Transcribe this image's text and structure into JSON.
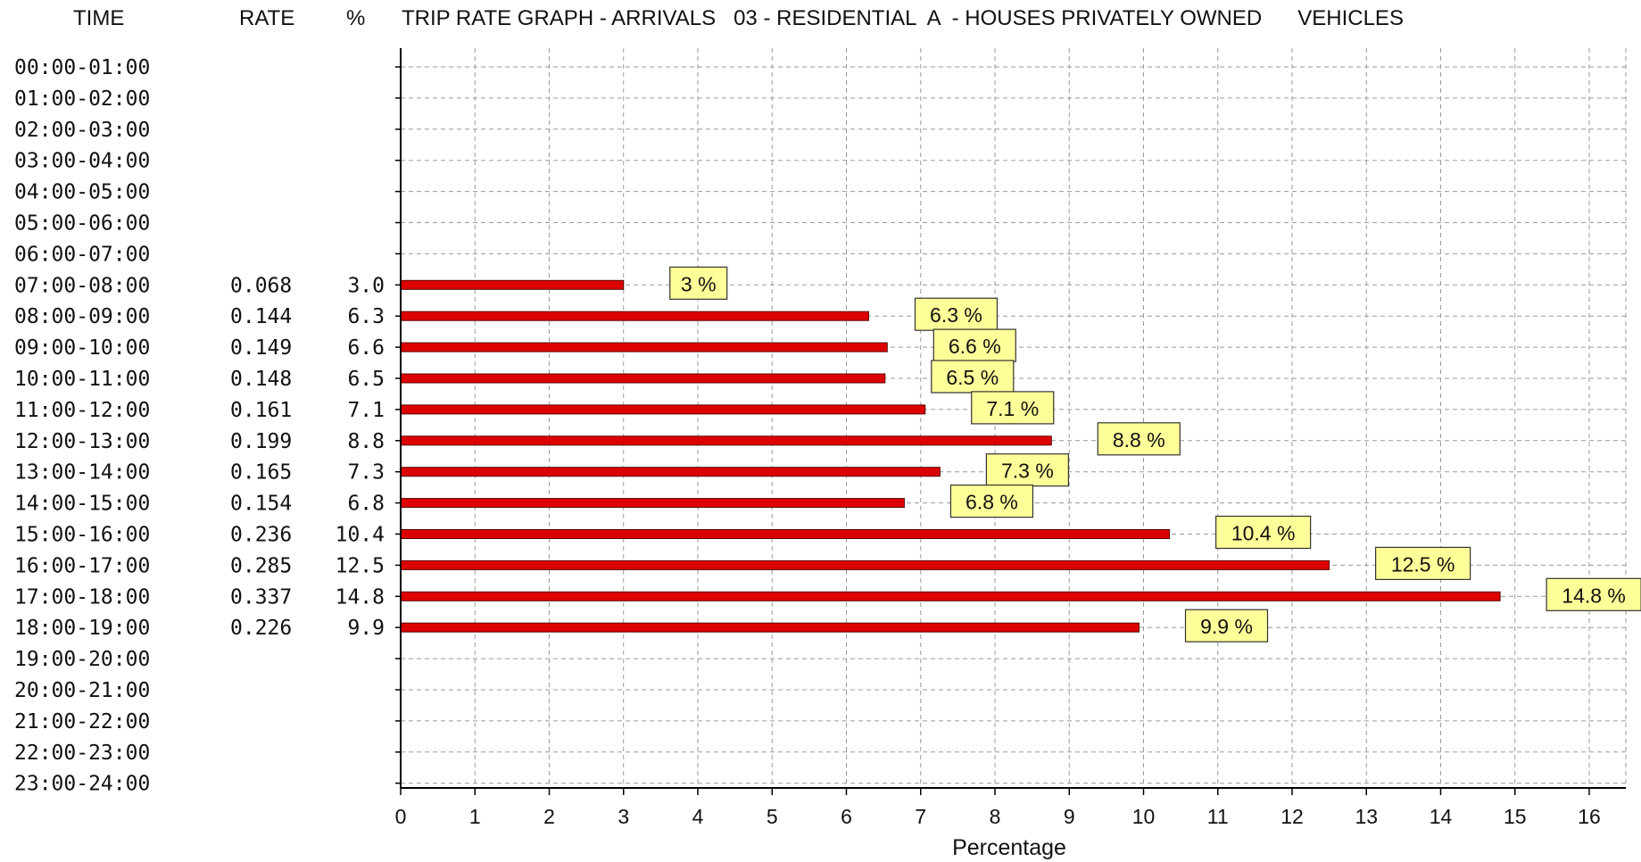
{
  "columns": {
    "time": "TIME",
    "rate": "RATE",
    "pct": "%"
  },
  "chart_data": {
    "type": "bar",
    "orientation": "horizontal",
    "title": "TRIP RATE GRAPH - ARRIVALS   03 - RESIDENTIAL  A  - HOUSES PRIVATELY OWNED      VEHICLES",
    "xlabel": "Percentage",
    "ylabel": "",
    "xlim": [
      0,
      16.5
    ],
    "xticks": [
      0,
      1,
      2,
      3,
      4,
      5,
      6,
      7,
      8,
      9,
      10,
      11,
      12,
      13,
      14,
      15,
      16
    ],
    "grid": true,
    "bar_color": "#dd0000",
    "label_fill": "#ffff99",
    "categories": [
      "00:00-01:00",
      "01:00-02:00",
      "02:00-03:00",
      "03:00-04:00",
      "04:00-05:00",
      "05:00-06:00",
      "06:00-07:00",
      "07:00-08:00",
      "08:00-09:00",
      "09:00-10:00",
      "10:00-11:00",
      "11:00-12:00",
      "12:00-13:00",
      "13:00-14:00",
      "14:00-15:00",
      "15:00-16:00",
      "16:00-17:00",
      "17:00-18:00",
      "18:00-19:00",
      "19:00-20:00",
      "20:00-21:00",
      "21:00-22:00",
      "22:00-23:00",
      "23:00-24:00"
    ],
    "rates": [
      "",
      "",
      "",
      "",
      "",
      "",
      "",
      "0.068",
      "0.144",
      "0.149",
      "0.148",
      "0.161",
      "0.199",
      "0.165",
      "0.154",
      "0.236",
      "0.285",
      "0.337",
      "0.226",
      "",
      "",
      "",
      "",
      ""
    ],
    "percents": [
      "",
      "",
      "",
      "",
      "",
      "",
      "",
      "3.0",
      "6.3",
      "6.6",
      "6.5",
      "7.1",
      "8.8",
      "7.3",
      "6.8",
      "10.4",
      "12.5",
      "14.8",
      "9.9",
      "",
      "",
      "",
      "",
      ""
    ],
    "values": [
      null,
      null,
      null,
      null,
      null,
      null,
      null,
      3.0,
      6.3,
      6.55,
      6.52,
      7.06,
      8.76,
      7.26,
      6.78,
      10.35,
      12.5,
      14.8,
      9.94,
      null,
      null,
      null,
      null,
      null
    ],
    "data_labels": [
      "",
      "",
      "",
      "",
      "",
      "",
      "",
      "3 %",
      "6.3 %",
      "6.6 %",
      "6.5 %",
      "7.1 %",
      "8.8 %",
      "7.3 %",
      "6.8 %",
      "10.4 %",
      "12.5 %",
      "14.8 %",
      "9.9 %",
      "",
      "",
      "",
      "",
      ""
    ]
  }
}
